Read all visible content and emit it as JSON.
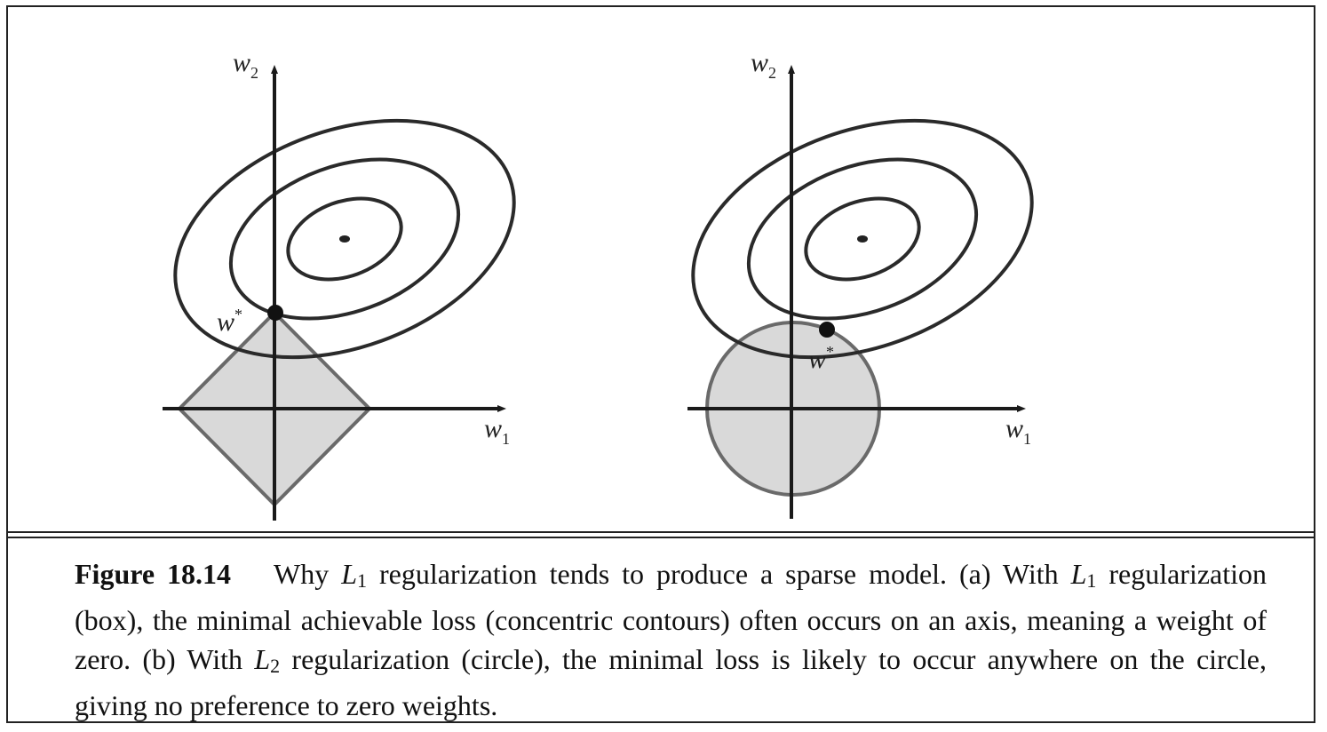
{
  "panel_a": {
    "x_axis_label": "w",
    "x_axis_sub": "1",
    "y_axis_label": "w",
    "y_axis_sub": "2",
    "optimum_label": "w",
    "optimum_sup": "*"
  },
  "panel_b": {
    "x_axis_label": "w",
    "x_axis_sub": "1",
    "y_axis_label": "w",
    "y_axis_sub": "2",
    "optimum_label": "w",
    "optimum_sup": "*"
  },
  "caption": {
    "figure_label": "Figure 18.14",
    "part1": "Why ",
    "l1_symbol": "L",
    "l1_sub": "1",
    "part2": " regularization tends to produce a sparse model. (a) With ",
    "l1b_symbol": "L",
    "l1b_sub": "1",
    "part3": " regularization (box), the minimal achievable loss (concentric contours) often occurs on an axis, meaning a weight of zero. (b) With ",
    "l2_symbol": "L",
    "l2_sub": "2",
    "part4": " regularization (circle), the minimal loss is likely to occur anywhere on the circle, giving no preference to zero weights."
  },
  "colors": {
    "region_fill": "#d9d9d9",
    "region_stroke": "#6a6a6a",
    "contour_stroke": "#2a2a2a",
    "axis_stroke": "#1a1a1a"
  }
}
